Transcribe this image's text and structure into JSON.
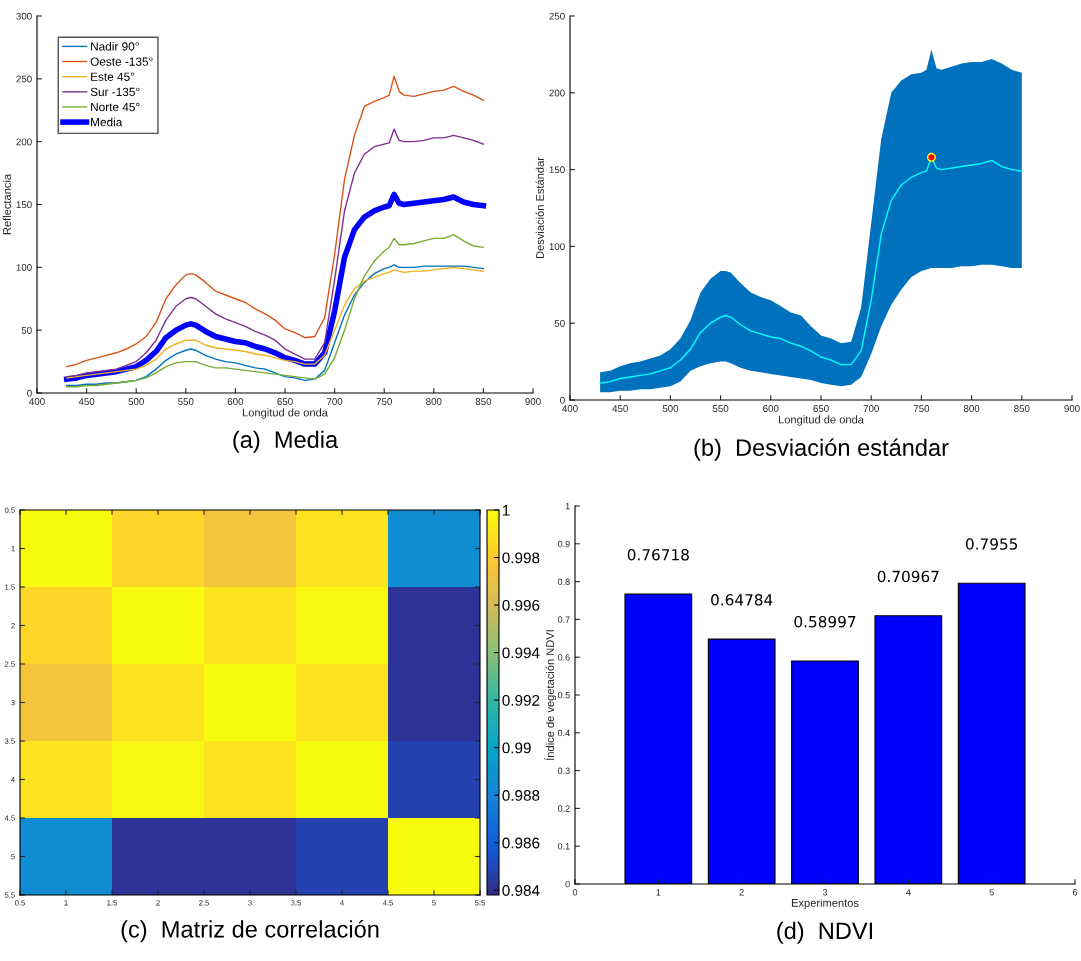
{
  "chart_data": [
    {
      "type": "line",
      "title": "(a)  Media",
      "xlabel": "Longitud de onda",
      "ylabel": "Reflectancia",
      "xlim": [
        400,
        900
      ],
      "xticks": [
        400,
        450,
        500,
        550,
        600,
        650,
        700,
        750,
        800,
        850,
        900
      ],
      "ylim": [
        0,
        300
      ],
      "yticks": [
        0,
        50,
        100,
        150,
        200,
        250,
        300
      ],
      "legend": "top left",
      "grid": false,
      "x": [
        430,
        440,
        450,
        460,
        470,
        480,
        490,
        500,
        510,
        520,
        530,
        540,
        550,
        555,
        560,
        570,
        580,
        590,
        600,
        610,
        620,
        630,
        640,
        650,
        660,
        670,
        680,
        690,
        700,
        710,
        720,
        730,
        740,
        750,
        755,
        760,
        765,
        770,
        780,
        790,
        800,
        810,
        820,
        830,
        840,
        850
      ],
      "series": [
        {
          "name": "Nadir 90°",
          "color": "#0072bd",
          "values": [
            6,
            6,
            7,
            7,
            8,
            8,
            9,
            10,
            13,
            19,
            26,
            31,
            34,
            35,
            34,
            30,
            27,
            25,
            24,
            22,
            20,
            19,
            16,
            13,
            12,
            10,
            11,
            18,
            40,
            62,
            78,
            88,
            95,
            99,
            100,
            102,
            100,
            100,
            100,
            101,
            101,
            101,
            101,
            101,
            100,
            99
          ]
        },
        {
          "name": "Oeste -135°",
          "color": "#d95319",
          "values": [
            21,
            23,
            26,
            28,
            30,
            32,
            35,
            39,
            45,
            56,
            75,
            86,
            94,
            95,
            94,
            88,
            81,
            78,
            75,
            72,
            67,
            63,
            58,
            51,
            48,
            44,
            45,
            60,
            110,
            170,
            205,
            228,
            232,
            235,
            237,
            252,
            240,
            237,
            236,
            238,
            240,
            241,
            244,
            240,
            237,
            233
          ]
        },
        {
          "name": "Este 45°",
          "color": "#edb120",
          "values": [
            12,
            13,
            14,
            15,
            16,
            17,
            18,
            19,
            22,
            27,
            35,
            39,
            42,
            42,
            42,
            38,
            36,
            35,
            34,
            33,
            31,
            30,
            28,
            26,
            25,
            23,
            23,
            30,
            50,
            70,
            83,
            89,
            92,
            95,
            96,
            98,
            97,
            96,
            97,
            97,
            98,
            99,
            100,
            99,
            98,
            97
          ]
        },
        {
          "name": "Sur -135°",
          "color": "#7e2f8e",
          "values": [
            13,
            14,
            16,
            17,
            18,
            19,
            22,
            25,
            32,
            42,
            58,
            69,
            75,
            76,
            75,
            69,
            63,
            59,
            56,
            53,
            49,
            46,
            42,
            35,
            31,
            27,
            27,
            40,
            90,
            145,
            175,
            190,
            196,
            198,
            199,
            210,
            201,
            200,
            200,
            201,
            203,
            203,
            205,
            203,
            201,
            198
          ]
        },
        {
          "name": "Norte 45°",
          "color": "#77ac30",
          "values": [
            5,
            5,
            6,
            6,
            7,
            8,
            9,
            10,
            12,
            16,
            21,
            24,
            25,
            25,
            25,
            22,
            20,
            20,
            19,
            18,
            17,
            16,
            15,
            14,
            13,
            12,
            11,
            15,
            28,
            50,
            75,
            93,
            105,
            113,
            116,
            123,
            118,
            118,
            119,
            121,
            123,
            123,
            126,
            121,
            117,
            116
          ]
        },
        {
          "name": "Media",
          "color": "#0000ff",
          "values": [
            11,
            12,
            14,
            15,
            16,
            17,
            19,
            21,
            26,
            33,
            44,
            50,
            54,
            55,
            54,
            49,
            45,
            43,
            41,
            40,
            37,
            35,
            32,
            28,
            26,
            23,
            23,
            32,
            65,
            108,
            130,
            140,
            145,
            148,
            149,
            158,
            151,
            150,
            151,
            152,
            153,
            154,
            156,
            152,
            150,
            149
          ]
        }
      ]
    },
    {
      "type": "line",
      "title": "(b)  Desviación estándar",
      "xlabel": "Longitud de onda",
      "ylabel": "Desviación Estándar",
      "xlim": [
        400,
        900
      ],
      "xticks": [
        400,
        450,
        500,
        550,
        600,
        650,
        700,
        750,
        800,
        850,
        900
      ],
      "ylim": [
        0,
        250
      ],
      "yticks": [
        0,
        50,
        100,
        150,
        200,
        250
      ],
      "grid": false,
      "x": [
        430,
        440,
        450,
        460,
        470,
        480,
        490,
        500,
        510,
        520,
        530,
        540,
        550,
        555,
        560,
        570,
        580,
        590,
        600,
        610,
        620,
        630,
        640,
        650,
        660,
        670,
        680,
        690,
        700,
        710,
        720,
        730,
        740,
        750,
        755,
        760,
        765,
        770,
        780,
        790,
        800,
        810,
        820,
        830,
        840,
        850
      ],
      "series": [
        {
          "color": "#00ffff",
          "values": [
            11,
            12,
            14,
            15,
            16,
            17,
            19,
            21,
            26,
            33,
            44,
            50,
            54,
            55,
            54,
            49,
            45,
            43,
            41,
            40,
            37,
            35,
            32,
            28,
            26,
            23,
            23,
            32,
            65,
            108,
            130,
            140,
            145,
            148,
            149,
            158,
            151,
            150,
            151,
            152,
            153,
            154,
            156,
            152,
            150,
            149
          ],
          "lower": [
            5,
            5,
            6,
            6,
            7,
            7,
            8,
            9,
            12,
            19,
            22,
            24,
            25,
            25,
            24,
            21,
            19,
            18,
            17,
            16,
            15,
            14,
            13,
            11,
            10,
            9,
            10,
            15,
            30,
            48,
            62,
            72,
            80,
            84,
            85,
            86,
            86,
            86,
            86,
            87,
            87,
            88,
            88,
            87,
            86,
            86
          ],
          "upper": [
            18,
            19,
            22,
            24,
            25,
            27,
            29,
            33,
            40,
            52,
            70,
            79,
            84,
            84,
            83,
            76,
            70,
            67,
            65,
            61,
            57,
            55,
            48,
            42,
            40,
            37,
            38,
            60,
            115,
            170,
            200,
            208,
            212,
            213,
            215,
            228,
            216,
            215,
            217,
            219,
            220,
            220,
            222,
            219,
            215,
            213
          ]
        },
        {
          "type": "scatter",
          "color": "#ff0000",
          "marker": "circle",
          "x": [
            760
          ],
          "values": [
            158
          ]
        }
      ]
    },
    {
      "type": "heatmap",
      "title": "(c)  Matriz de correlación",
      "xlim": [
        0.5,
        5.5
      ],
      "xticks": [
        0.5,
        1,
        1.5,
        2,
        2.5,
        3,
        3.5,
        4,
        4.5,
        5,
        5.5
      ],
      "ylim": [
        5.5,
        0.5
      ],
      "yticks": [
        0.5,
        1,
        1.5,
        2,
        2.5,
        3,
        3.5,
        4,
        4.5,
        5,
        5.5
      ],
      "cells": [
        [
          1,
          0.9985,
          0.9975,
          0.999,
          0.9885
        ],
        [
          0.9985,
          1,
          0.999,
          0.9998,
          0.9842
        ],
        [
          0.9975,
          0.999,
          1,
          0.999,
          0.9842
        ],
        [
          0.999,
          0.9998,
          0.999,
          1,
          0.9848
        ],
        [
          0.9885,
          0.9842,
          0.9842,
          0.9848,
          1
        ]
      ],
      "clim": [
        0.9838,
        1
      ],
      "cticks": [
        0.984,
        0.986,
        0.988,
        0.99,
        0.992,
        0.994,
        0.996,
        0.998,
        1
      ]
    },
    {
      "type": "bar",
      "title": "(d)  NDVI",
      "xlabel": "Experimentos",
      "ylabel": "Índice de vegetación NDVI",
      "x": [
        1,
        2,
        3,
        4,
        5
      ],
      "values": [
        0.76718,
        0.64784,
        0.58997,
        0.70967,
        0.7955
      ],
      "color": "#0000ff",
      "data_labels": true,
      "xlim": [
        0,
        6
      ],
      "xticks": [
        0,
        1,
        2,
        3,
        4,
        5,
        6
      ],
      "ylim": [
        0,
        1
      ],
      "yticks": [
        0,
        0.1,
        0.2,
        0.3,
        0.4,
        0.5,
        0.6,
        0.7,
        0.8,
        0.9,
        1
      ],
      "grid": false
    }
  ]
}
